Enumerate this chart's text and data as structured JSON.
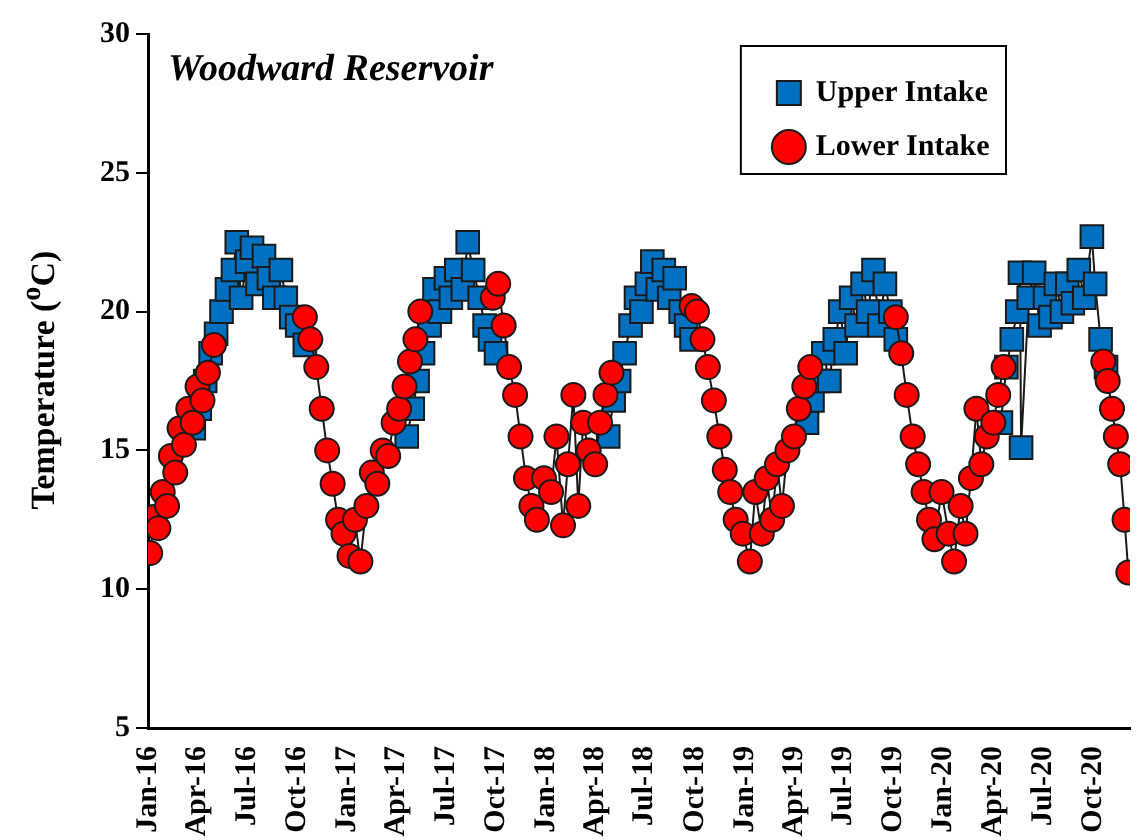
{
  "chart_data": {
    "type": "line",
    "title": "Woodward Reservoir",
    "ylabel": "Temperature ($^{o}$C)",
    "xlim": [
      "2016-01-01",
      "2020-12-08"
    ],
    "xticks": [
      {
        "value": "2016-01-01",
        "label": "Jan-16"
      },
      {
        "value": "2016-04-01",
        "label": "Apr-16"
      },
      {
        "value": "2016-07-01",
        "label": "Jul-16"
      },
      {
        "value": "2016-10-01",
        "label": "Oct-16"
      },
      {
        "value": "2017-01-01",
        "label": "Jan-17"
      },
      {
        "value": "2017-04-01",
        "label": "Apr-17"
      },
      {
        "value": "2017-07-01",
        "label": "Jul-17"
      },
      {
        "value": "2017-10-01",
        "label": "Oct-17"
      },
      {
        "value": "2018-01-01",
        "label": "Jan-18"
      },
      {
        "value": "2018-04-01",
        "label": "Apr-18"
      },
      {
        "value": "2018-07-01",
        "label": "Jul-18"
      },
      {
        "value": "2018-10-01",
        "label": "Oct-18"
      },
      {
        "value": "2019-01-01",
        "label": "Jan-19"
      },
      {
        "value": "2019-04-01",
        "label": "Apr-19"
      },
      {
        "value": "2019-07-01",
        "label": "Jul-19"
      },
      {
        "value": "2019-10-01",
        "label": "Oct-19"
      },
      {
        "value": "2020-01-01",
        "label": "Jan-20"
      },
      {
        "value": "2020-04-01",
        "label": "Apr-20"
      },
      {
        "value": "2020-07-01",
        "label": "Jul-20"
      },
      {
        "value": "2020-10-01",
        "label": "Oct-20"
      }
    ],
    "ylim": [
      5,
      30
    ],
    "yticks": [
      5,
      10,
      15,
      20,
      25,
      30
    ],
    "grid": false,
    "legend": "top right",
    "series": [
      {
        "name": "Upper Intake",
        "color": "#0070c0",
        "marker": "square",
        "x": [
          "2016-03-25",
          "2016-04-05",
          "2016-04-15",
          "2016-04-25",
          "2016-05-05",
          "2016-05-15",
          "2016-05-25",
          "2016-06-05",
          "2016-06-12",
          "2016-06-20",
          "2016-07-01",
          "2016-07-10",
          "2016-07-20",
          "2016-08-01",
          "2016-08-10",
          "2016-08-20",
          "2016-09-01",
          "2016-09-10",
          "2016-09-20",
          "2016-10-01",
          "2016-10-15",
          "2016-12-31",
          "2017-04-20",
          "2017-05-01",
          "2017-05-10",
          "2017-05-20",
          "2017-06-01",
          "2017-06-10",
          "2017-06-20",
          "2017-07-01",
          "2017-07-10",
          "2017-07-20",
          "2017-08-01",
          "2017-08-10",
          "2017-08-20",
          "2017-09-01",
          "2017-09-10",
          "2017-09-20",
          "2017-10-01",
          "2017-12-31",
          "2018-04-25",
          "2018-05-05",
          "2018-05-15",
          "2018-05-25",
          "2018-06-05",
          "2018-06-15",
          "2018-06-25",
          "2018-07-05",
          "2018-07-15",
          "2018-07-25",
          "2018-08-05",
          "2018-08-15",
          "2018-08-25",
          "2018-09-05",
          "2018-09-15",
          "2018-09-25",
          "2018-12-31",
          "2019-04-25",
          "2019-05-05",
          "2019-05-15",
          "2019-05-25",
          "2019-06-05",
          "2019-06-15",
          "2019-06-25",
          "2019-07-05",
          "2019-07-15",
          "2019-07-25",
          "2019-08-05",
          "2019-08-15",
          "2019-08-25",
          "2019-09-05",
          "2019-09-15",
          "2019-09-25",
          "2019-10-05",
          "2019-12-31",
          "2020-04-15",
          "2020-04-25",
          "2020-05-05",
          "2020-05-15",
          "2020-05-20",
          "2020-05-22",
          "2020-06-05",
          "2020-06-15",
          "2020-06-25",
          "2020-07-05",
          "2020-07-15",
          "2020-07-25",
          "2020-08-05",
          "2020-08-15",
          "2020-08-25",
          "2020-09-05",
          "2020-09-15",
          "2020-09-29",
          "2020-10-05",
          "2020-10-15",
          "2020-10-25"
        ],
        "values": [
          15.8,
          16.5,
          17.5,
          18.5,
          19.2,
          20.0,
          20.8,
          21.5,
          22.5,
          20.5,
          21.8,
          22.3,
          21.0,
          22.0,
          21.2,
          20.5,
          21.5,
          20.5,
          19.8,
          19.5,
          18.8,
          null,
          15.5,
          16.5,
          17.5,
          18.5,
          19.5,
          20.8,
          20.0,
          21.2,
          20.5,
          21.5,
          20.8,
          22.5,
          21.5,
          20.5,
          19.5,
          19.0,
          18.5,
          null,
          15.5,
          16.8,
          17.5,
          18.5,
          19.5,
          20.5,
          20.0,
          21.0,
          21.8,
          20.8,
          21.5,
          20.5,
          21.2,
          20.0,
          19.5,
          19.0,
          null,
          16.0,
          16.8,
          17.5,
          18.5,
          17.5,
          19.0,
          20.0,
          18.5,
          20.5,
          19.5,
          21.0,
          20.0,
          21.5,
          19.5,
          21.0,
          20.0,
          19.0,
          null,
          16.0,
          18.0,
          19.0,
          20.0,
          21.4,
          15.1,
          20.5,
          21.4,
          19.5,
          20.5,
          19.8,
          21.0,
          20.0,
          21.0,
          20.3,
          21.5,
          20.5,
          22.7,
          21.0,
          19.0,
          18.0
        ]
      },
      {
        "name": "Lower Intake",
        "color": "#ff0000",
        "marker": "circle",
        "x": [
          "2016-01-05",
          "2016-01-12",
          "2016-01-20",
          "2016-01-28",
          "2016-02-05",
          "2016-02-12",
          "2016-02-20",
          "2016-02-28",
          "2016-03-07",
          "2016-03-15",
          "2016-03-23",
          "2016-04-01",
          "2016-04-10",
          "2016-04-20",
          "2016-05-01",
          "2016-07-01",
          "2016-10-15",
          "2016-10-25",
          "2016-11-05",
          "2016-11-15",
          "2016-11-25",
          "2016-12-05",
          "2016-12-15",
          "2016-12-25",
          "2017-01-05",
          "2017-01-15",
          "2017-01-25",
          "2017-02-05",
          "2017-02-15",
          "2017-02-25",
          "2017-03-07",
          "2017-03-17",
          "2017-03-27",
          "2017-04-06",
          "2017-04-16",
          "2017-04-26",
          "2017-05-06",
          "2017-05-15",
          "2017-07-01",
          "2017-09-25",
          "2017-10-05",
          "2017-10-15",
          "2017-10-25",
          "2017-11-05",
          "2017-11-15",
          "2017-11-25",
          "2017-12-05",
          "2017-12-15",
          "2017-12-28",
          "2018-01-10",
          "2018-01-20",
          "2018-02-01",
          "2018-02-10",
          "2018-02-20",
          "2018-03-01",
          "2018-03-10",
          "2018-03-20",
          "2018-04-01",
          "2018-04-10",
          "2018-04-20",
          "2018-05-01",
          "2018-07-01",
          "2018-09-25",
          "2018-10-05",
          "2018-10-15",
          "2018-10-25",
          "2018-11-05",
          "2018-11-15",
          "2018-11-25",
          "2018-12-05",
          "2018-12-15",
          "2018-12-28",
          "2019-01-10",
          "2019-01-20",
          "2019-02-01",
          "2019-02-10",
          "2019-02-20",
          "2019-03-01",
          "2019-03-10",
          "2019-03-20",
          "2019-04-01",
          "2019-04-10",
          "2019-04-20",
          "2019-05-01",
          "2019-07-01",
          "2019-10-05",
          "2019-10-15",
          "2019-10-25",
          "2019-11-05",
          "2019-11-15",
          "2019-11-25",
          "2019-12-05",
          "2019-12-15",
          "2019-12-28",
          "2020-01-10",
          "2020-01-20",
          "2020-02-01",
          "2020-02-10",
          "2020-02-20",
          "2020-03-01",
          "2020-03-10",
          "2020-03-20",
          "2020-04-01",
          "2020-04-10",
          "2020-04-20",
          "2020-07-01",
          "2020-10-20",
          "2020-10-28",
          "2020-11-05",
          "2020-11-12",
          "2020-11-20",
          "2020-11-28",
          "2020-12-05"
        ],
        "values": [
          11.3,
          12.6,
          12.2,
          13.5,
          13.0,
          14.8,
          14.2,
          15.8,
          15.2,
          16.5,
          16.0,
          17.3,
          16.8,
          17.8,
          18.8,
          null,
          19.8,
          19.0,
          18.0,
          16.5,
          15.0,
          13.8,
          12.5,
          12.0,
          11.2,
          12.5,
          11.0,
          13.0,
          14.2,
          13.8,
          15.0,
          14.8,
          16.0,
          16.5,
          17.3,
          18.2,
          19.0,
          20.0,
          null,
          20.5,
          21.0,
          19.5,
          18.0,
          17.0,
          15.5,
          14.0,
          13.0,
          12.5,
          14.0,
          13.5,
          15.5,
          12.3,
          14.5,
          17.0,
          13.0,
          16.0,
          15.0,
          14.5,
          16.0,
          17.0,
          17.8,
          null,
          20.2,
          20.0,
          19.0,
          18.0,
          16.8,
          15.5,
          14.3,
          13.5,
          12.5,
          12.0,
          11.0,
          13.5,
          12.0,
          14.0,
          12.5,
          14.5,
          13.0,
          15.0,
          15.5,
          16.5,
          17.3,
          18.0,
          null,
          19.8,
          18.5,
          17.0,
          15.5,
          14.5,
          13.5,
          12.5,
          11.8,
          13.5,
          12.0,
          11.0,
          13.0,
          12.0,
          14.0,
          16.5,
          14.5,
          15.5,
          16.0,
          17.0,
          18.0,
          null,
          18.2,
          17.5,
          16.5,
          15.5,
          14.5,
          12.5,
          10.6
        ]
      }
    ]
  }
}
